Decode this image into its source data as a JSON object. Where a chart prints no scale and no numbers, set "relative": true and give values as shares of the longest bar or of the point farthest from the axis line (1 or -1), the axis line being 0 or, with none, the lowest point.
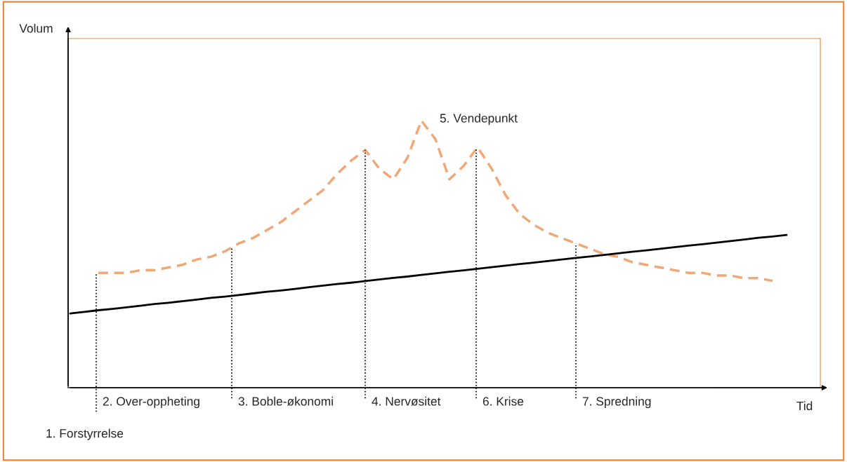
{
  "chart_data": {
    "type": "line",
    "relative": true,
    "xlabel": "Tid",
    "categories": [
      null,
      null,
      null,
      null,
      null,
      null,
      null,
      null,
      null,
      null,
      null,
      null,
      null,
      null,
      null,
      null,
      null,
      null,
      null,
      null,
      null,
      null,
      null,
      null,
      null,
      null,
      null,
      null,
      null,
      null,
      null,
      null,
      null,
      null,
      null,
      null,
      null,
      null,
      null,
      null,
      null,
      null,
      null,
      null,
      null,
      null,
      null,
      null,
      null,
      null,
      null,
      null
    ],
    "series": [
      {
        "color": "#f0a878",
        "line_style": "dashed",
        "values": [
          null,
          null,
          0.43,
          0.43,
          0.43,
          0.44,
          0.44,
          0.45,
          0.46,
          0.48,
          0.49,
          0.51,
          0.54,
          0.56,
          0.59,
          0.62,
          0.66,
          0.7,
          0.74,
          0.8,
          0.85,
          0.89,
          0.82,
          0.78,
          0.86,
          1.0,
          0.93,
          0.78,
          0.83,
          0.9,
          0.82,
          0.72,
          0.65,
          0.61,
          0.58,
          0.56,
          0.54,
          0.52,
          0.5,
          0.49,
          0.47,
          0.46,
          0.45,
          0.44,
          0.43,
          0.43,
          0.42,
          0.42,
          0.41,
          0.41,
          0.4,
          null
        ]
      },
      {
        "color": "#000000",
        "line_style": "solid",
        "values": [
          0.278,
          0.284,
          0.29,
          0.295,
          0.301,
          0.307,
          0.313,
          0.318,
          0.324,
          0.33,
          0.336,
          0.341,
          0.347,
          0.353,
          0.359,
          0.364,
          0.37,
          0.376,
          0.382,
          0.388,
          0.393,
          0.399,
          0.405,
          0.411,
          0.416,
          0.422,
          0.428,
          0.434,
          0.439,
          0.445,
          0.451,
          0.457,
          0.463,
          0.468,
          0.474,
          0.48,
          0.486,
          0.491,
          0.497,
          0.503,
          0.509,
          0.514,
          0.52,
          0.526,
          0.532,
          0.537,
          0.543,
          0.549,
          0.555,
          0.561,
          0.566,
          0.572
        ]
      }
    ],
    "annotations": [
      "Volum",
      "1. Forstyrrelse",
      "2. Over-oppheting",
      "3. Boble-økonomi",
      "4. Nervøsitet",
      "5. Vendepunkt",
      "6. Krise",
      "7. Spredning"
    ],
    "marker": "none"
  }
}
